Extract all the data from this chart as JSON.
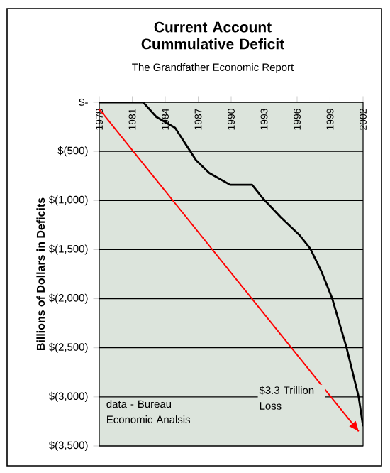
{
  "chart_data": {
    "type": "line",
    "title": "Current Account Cummulative Deficit",
    "subtitle": "The Grandfather Economic Report",
    "ylabel": "Billions of Dollars in Deficits",
    "series": [
      {
        "color": "#000000",
        "x": [
          1978,
          1982,
          1983.2,
          1984.9,
          1986.8,
          1988,
          1989.9,
          1991.9,
          1992.9,
          1994.5,
          1996.2,
          1997.2,
          1998.2,
          1999.2,
          2000.5,
          2001.6,
          2002
        ],
        "values": [
          0,
          0,
          -150,
          -260,
          -590,
          -720,
          -840,
          -840,
          -980,
          -1170,
          -1350,
          -1490,
          -1720,
          -2000,
          -2500,
          -3000,
          -3300
        ]
      },
      {
        "type": "line",
        "color": "#ff0000",
        "x": [
          1978,
          2001.6
        ],
        "values": [
          -70,
          -3350
        ]
      }
    ],
    "xlim": [
      1978,
      2002
    ],
    "ylim": [
      -3500,
      0
    ],
    "xticks": [
      1978,
      1981,
      1984,
      1987,
      1990,
      1993,
      1996,
      1999,
      2002
    ],
    "yticks": [
      {
        "value": 0,
        "label": "$-"
      },
      {
        "value": -500,
        "label": "$(500)"
      },
      {
        "value": -1000,
        "label": "$(1,000)"
      },
      {
        "value": -1500,
        "label": "$(1,500)"
      },
      {
        "value": -2000,
        "label": "$(2,000)"
      },
      {
        "value": -2500,
        "label": "$(2,500)"
      },
      {
        "value": -3000,
        "label": "$(3,000)"
      },
      {
        "value": -3500,
        "label": "$(3,500)"
      }
    ],
    "grid": "y",
    "marker": "none",
    "annotations": [
      "data - Bureau Economic Analsis",
      "$3.3 Trillion Loss"
    ]
  }
}
